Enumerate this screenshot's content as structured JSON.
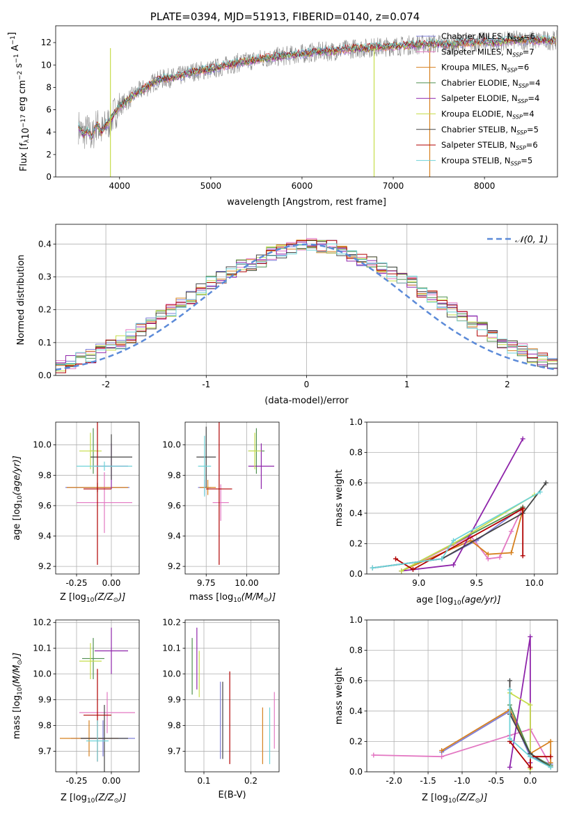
{
  "figure_title": "PLATE=0394, MJD=51913, FIBERID=0140, z=0.074",
  "colors": {
    "Chabrier MILES": "#7f7fd8",
    "Salpeter MILES": "#e377c2",
    "Kroupa MILES": "#d6801e",
    "Chabrier ELODIE": "#4f8f4f",
    "Salpeter ELODIE": "#8e24aa",
    "Kroupa ELODIE": "#c6dd4a",
    "Chabrier STELIB": "#444444",
    "Salpeter STELIB": "#b00000",
    "Kroupa STELIB": "#6fd3d8"
  },
  "chart_data": [
    {
      "id": "spectrum",
      "type": "line",
      "title": "PLATE=0394, MJD=51913, FIBERID=0140, z=0.074",
      "xlabel": "wavelength [Angstrom, rest frame]",
      "ylabel": "Flux [f_λ 10^-17 erg cm^-2 s^-1 A^-1]",
      "xlim": [
        3300,
        8800
      ],
      "ylim": [
        0,
        13.5
      ],
      "xticks": [
        4000,
        5000,
        6000,
        7000,
        8000
      ],
      "yticks": [
        0,
        2,
        4,
        6,
        8,
        10,
        12
      ],
      "grid": false,
      "legend_position": "right",
      "data_line": {
        "name": "data",
        "color": "#888888",
        "x": [
          3550,
          3600,
          3650,
          3700,
          3750,
          3800,
          3850,
          3900,
          3950,
          4000,
          4100,
          4200,
          4300,
          4400,
          4500,
          4600,
          4700,
          4800,
          4900,
          5000,
          5100,
          5200,
          5300,
          5400,
          5500,
          5600,
          5700,
          5800,
          5900,
          6000,
          6100,
          6200,
          6300,
          6400,
          6500,
          6600,
          6700,
          6800,
          6900,
          7000,
          7100,
          7200,
          7300,
          7400,
          7500,
          7600,
          7700,
          7800,
          7900,
          8000,
          8100,
          8200,
          8300,
          8400
        ],
        "y": [
          4.5,
          3.8,
          4.2,
          3.5,
          4.8,
          4.0,
          4.6,
          5.0,
          5.8,
          6.3,
          6.9,
          7.6,
          8.0,
          8.6,
          8.8,
          8.9,
          9.1,
          9.4,
          9.5,
          9.6,
          9.8,
          10.0,
          10.2,
          10.3,
          10.5,
          10.6,
          10.7,
          10.8,
          10.9,
          11.0,
          11.1,
          11.2,
          11.2,
          11.3,
          11.4,
          11.5,
          11.5,
          11.6,
          11.6,
          11.7,
          11.7,
          11.8,
          11.8,
          11.9,
          11.9,
          11.8,
          11.9,
          12.0,
          12.0,
          12.1,
          12.0,
          12.1,
          12.2,
          12.2
        ]
      },
      "series": [
        {
          "name": "Chabrier MILES",
          "nssp": "6"
        },
        {
          "name": "Salpeter MILES",
          "nssp": "7"
        },
        {
          "name": "Kroupa MILES",
          "nssp": "6"
        },
        {
          "name": "Chabrier ELODIE",
          "nssp": "4"
        },
        {
          "name": "Salpeter ELODIE",
          "nssp": "4"
        },
        {
          "name": "Kroupa ELODIE",
          "nssp": "4"
        },
        {
          "name": "Chabrier STELIB",
          "nssp": "5"
        },
        {
          "name": "Salpeter STELIB",
          "nssp": "6"
        },
        {
          "name": "Kroupa STELIB",
          "nssp": "5"
        }
      ]
    },
    {
      "id": "residuals",
      "type": "line",
      "xlabel": "(data-model)/error",
      "ylabel": "Normed distribution",
      "xlim": [
        -2.5,
        2.5
      ],
      "ylim": [
        0,
        0.46
      ],
      "xticks": [
        -2,
        -1,
        0,
        1,
        2
      ],
      "yticks": [
        0.0,
        0.1,
        0.2,
        0.3,
        0.4
      ],
      "grid": true,
      "legend": "𝒩(0, 1)",
      "legend_position": "top-right",
      "bin_edges_start": -2.5,
      "bin_width": 0.1,
      "histogram_mean": [
        0.03,
        0.04,
        0.05,
        0.06,
        0.08,
        0.09,
        0.1,
        0.12,
        0.14,
        0.16,
        0.18,
        0.2,
        0.22,
        0.24,
        0.26,
        0.28,
        0.3,
        0.31,
        0.33,
        0.34,
        0.35,
        0.37,
        0.38,
        0.39,
        0.39,
        0.4,
        0.39,
        0.39,
        0.38,
        0.37,
        0.35,
        0.34,
        0.33,
        0.31,
        0.3,
        0.28,
        0.26,
        0.24,
        0.22,
        0.2,
        0.18,
        0.16,
        0.14,
        0.12,
        0.1,
        0.09,
        0.08,
        0.06,
        0.05,
        0.04
      ]
    },
    {
      "id": "age_vs_Z",
      "type": "scatter",
      "xlabel": "Z [log10(Z/Z⊙)]",
      "ylabel": "age [log10(age/yr)]",
      "xlim": [
        -0.4,
        0.2
      ],
      "ylim": [
        9.15,
        10.15
      ],
      "xticks": [
        -0.25,
        0.0
      ],
      "yticks": [
        9.2,
        9.4,
        9.6,
        9.8,
        10.0
      ],
      "grid": true,
      "points": [
        {
          "s": "Chabrier MILES",
          "x": -0.1,
          "y": 9.72,
          "xerr": 0.23,
          "yerr": 0.03
        },
        {
          "s": "Salpeter MILES",
          "x": -0.05,
          "y": 9.62,
          "xerr": 0.2,
          "yerr": 0.2
        },
        {
          "s": "Kroupa MILES",
          "x": -0.1,
          "y": 9.72,
          "xerr": 0.22,
          "yerr": 0.03
        },
        {
          "s": "Chabrier ELODIE",
          "x": -0.13,
          "y": 9.96,
          "xerr": 0.02,
          "yerr": 0.15
        },
        {
          "s": "Salpeter ELODIE",
          "x": -0.0,
          "y": 9.86,
          "xerr": 0.12,
          "yerr": 0.15
        },
        {
          "s": "Kroupa ELODIE",
          "x": -0.15,
          "y": 9.96,
          "xerr": 0.08,
          "yerr": 0.12
        },
        {
          "s": "Chabrier STELIB",
          "x": 0.0,
          "y": 9.92,
          "xerr": 0.15,
          "yerr": 0.15
        },
        {
          "s": "Salpeter STELIB",
          "x": -0.1,
          "y": 9.71,
          "xerr": 0.1,
          "yerr": 0.5
        },
        {
          "s": "Kroupa STELIB",
          "x": -0.05,
          "y": 9.86,
          "xerr": 0.2,
          "yerr": 0.03
        }
      ]
    },
    {
      "id": "age_vs_mass",
      "type": "scatter",
      "xlabel": "mass [log10(M/M⊙)]",
      "ylabel": "",
      "xlim": [
        9.62,
        10.2
      ],
      "ylim": [
        9.15,
        10.15
      ],
      "xticks": [
        9.75,
        10.0
      ],
      "yticks": [
        9.2,
        9.4,
        9.6,
        9.8,
        10.0
      ],
      "grid": true,
      "points": [
        {
          "s": "Chabrier MILES",
          "x": 9.74,
          "y": 9.72,
          "xerr": 0.04,
          "yerr": 0.05
        },
        {
          "s": "Salpeter MILES",
          "x": 9.84,
          "y": 9.62,
          "xerr": 0.05,
          "yerr": 0.12
        },
        {
          "s": "Kroupa MILES",
          "x": 9.76,
          "y": 9.72,
          "xerr": 0.05,
          "yerr": 0.05
        },
        {
          "s": "Chabrier ELODIE",
          "x": 10.06,
          "y": 9.96,
          "xerr": 0.05,
          "yerr": 0.15
        },
        {
          "s": "Salpeter ELODIE",
          "x": 10.09,
          "y": 9.86,
          "xerr": 0.08,
          "yerr": 0.15
        },
        {
          "s": "Kroupa ELODIE",
          "x": 10.05,
          "y": 9.96,
          "xerr": 0.04,
          "yerr": 0.12
        },
        {
          "s": "Chabrier STELIB",
          "x": 9.75,
          "y": 9.92,
          "xerr": 0.06,
          "yerr": 0.2
        },
        {
          "s": "Salpeter STELIB",
          "x": 9.83,
          "y": 9.71,
          "xerr": 0.08,
          "yerr": 0.5
        },
        {
          "s": "Kroupa STELIB",
          "x": 9.74,
          "y": 9.86,
          "xerr": 0.04,
          "yerr": 0.2
        }
      ]
    },
    {
      "id": "mass_weight_vs_age",
      "type": "line",
      "xlabel": "age [log10(age/yr)]",
      "ylabel": "mass weight",
      "xlim": [
        8.55,
        10.2
      ],
      "ylim": [
        0,
        1.0
      ],
      "xticks": [
        9.0,
        9.5,
        10.0
      ],
      "yticks": [
        0.0,
        0.2,
        0.4,
        0.6,
        0.8,
        1.0
      ],
      "grid": true,
      "series": [
        {
          "name": "Chabrier MILES",
          "x": [
            8.6,
            9.2,
            9.5,
            9.9
          ],
          "y": [
            0.04,
            0.1,
            0.22,
            0.44
          ]
        },
        {
          "name": "Salpeter MILES",
          "x": [
            8.85,
            9.45,
            9.6,
            9.7,
            9.8,
            9.9
          ],
          "y": [
            0.02,
            0.25,
            0.1,
            0.11,
            0.28,
            0.44
          ]
        },
        {
          "name": "Kroupa MILES",
          "x": [
            8.85,
            9.45,
            9.6,
            9.8,
            9.9
          ],
          "y": [
            0.02,
            0.22,
            0.13,
            0.14,
            0.42
          ]
        },
        {
          "name": "Chabrier ELODIE",
          "x": [
            8.85,
            9.3,
            9.9
          ],
          "y": [
            0.02,
            0.2,
            0.44
          ]
        },
        {
          "name": "Salpeter ELODIE",
          "x": [
            8.85,
            9.3,
            9.9
          ],
          "y": [
            0.02,
            0.06,
            0.89
          ]
        },
        {
          "name": "Kroupa ELODIE",
          "x": [
            8.85,
            9.3,
            10.0
          ],
          "y": [
            0.02,
            0.2,
            0.52
          ]
        },
        {
          "name": "Chabrier STELIB",
          "x": [
            8.6,
            9.2,
            9.9,
            10.1
          ],
          "y": [
            0.04,
            0.1,
            0.4,
            0.6
          ]
        },
        {
          "name": "Salpeter STELIB",
          "x": [
            8.8,
            8.95,
            9.9,
            9.9
          ],
          "y": [
            0.1,
            0.03,
            0.43,
            0.12
          ]
        },
        {
          "name": "Kroupa STELIB",
          "x": [
            8.6,
            9.2,
            9.3,
            10.05
          ],
          "y": [
            0.04,
            0.1,
            0.22,
            0.54
          ]
        }
      ]
    },
    {
      "id": "mass_vs_Z",
      "type": "scatter",
      "xlabel": "Z [log10(Z/Z⊙)]",
      "ylabel": "mass [log10(M/M⊙)]",
      "xlim": [
        -0.4,
        0.2
      ],
      "ylim": [
        9.62,
        10.21
      ],
      "xticks": [
        -0.25,
        0.0
      ],
      "yticks": [
        9.7,
        9.8,
        9.9,
        10.0,
        10.1,
        10.2
      ],
      "grid": true,
      "points": [
        {
          "s": "Chabrier MILES",
          "x": -0.06,
          "y": 9.75,
          "xerr": 0.23,
          "yerr": 0.07
        },
        {
          "s": "Salpeter MILES",
          "x": -0.03,
          "y": 9.85,
          "xerr": 0.2,
          "yerr": 0.08
        },
        {
          "s": "Kroupa MILES",
          "x": -0.16,
          "y": 9.75,
          "xerr": 0.21,
          "yerr": 0.07
        },
        {
          "s": "Chabrier ELODIE",
          "x": -0.13,
          "y": 10.06,
          "xerr": 0.08,
          "yerr": 0.08
        },
        {
          "s": "Salpeter ELODIE",
          "x": -0.0,
          "y": 10.09,
          "xerr": 0.12,
          "yerr": 0.09
        },
        {
          "s": "Kroupa ELODIE",
          "x": -0.15,
          "y": 10.05,
          "xerr": 0.08,
          "yerr": 0.07
        },
        {
          "s": "Chabrier STELIB",
          "x": -0.05,
          "y": 9.75,
          "xerr": 0.17,
          "yerr": 0.13
        },
        {
          "s": "Salpeter STELIB",
          "x": -0.1,
          "y": 9.84,
          "xerr": 0.1,
          "yerr": 0.18
        },
        {
          "s": "Kroupa STELIB",
          "x": -0.1,
          "y": 9.74,
          "xerr": 0.08,
          "yerr": 0.08
        }
      ]
    },
    {
      "id": "mass_vs_ebv",
      "type": "scatter",
      "xlabel": "E(B-V)",
      "ylabel": "",
      "xlim": [
        0.06,
        0.26
      ],
      "ylim": [
        9.62,
        10.21
      ],
      "xticks": [
        0.1,
        0.2
      ],
      "yticks": [
        9.7,
        9.8,
        9.9,
        10.0,
        10.1,
        10.2
      ],
      "grid": true,
      "points": [
        {
          "s": "Chabrier MILES",
          "x": 0.135,
          "y": 9.82,
          "xerr": 0,
          "yerr": 0.15
        },
        {
          "s": "Salpeter MILES",
          "x": 0.25,
          "y": 9.82,
          "xerr": 0,
          "yerr": 0.11
        },
        {
          "s": "Kroupa MILES",
          "x": 0.225,
          "y": 9.76,
          "xerr": 0,
          "yerr": 0.11
        },
        {
          "s": "Chabrier ELODIE",
          "x": 0.075,
          "y": 10.03,
          "xerr": 0,
          "yerr": 0.11
        },
        {
          "s": "Salpeter ELODIE",
          "x": 0.085,
          "y": 10.06,
          "xerr": 0,
          "yerr": 0.12
        },
        {
          "s": "Kroupa ELODIE",
          "x": 0.09,
          "y": 10.0,
          "xerr": 0,
          "yerr": 0.09
        },
        {
          "s": "Chabrier STELIB",
          "x": 0.14,
          "y": 9.82,
          "xerr": 0,
          "yerr": 0.15
        },
        {
          "s": "Salpeter STELIB",
          "x": 0.155,
          "y": 9.83,
          "xerr": 0,
          "yerr": 0.18
        },
        {
          "s": "Kroupa STELIB",
          "x": 0.24,
          "y": 9.76,
          "xerr": 0,
          "yerr": 0.11
        }
      ]
    },
    {
      "id": "mass_weight_vs_Z",
      "type": "line",
      "xlabel": "Z [log10(Z/Z⊙)]",
      "ylabel": "mass weight",
      "xlim": [
        -2.4,
        0.4
      ],
      "ylim": [
        0,
        1.0
      ],
      "xticks": [
        -2.0,
        -1.5,
        -1.0,
        -0.5,
        0.0
      ],
      "yticks": [
        0.0,
        0.2,
        0.4,
        0.6,
        0.8,
        1.0
      ],
      "grid": true,
      "series": [
        {
          "name": "Chabrier MILES",
          "x": [
            -1.3,
            -0.3,
            0.0,
            0.3
          ],
          "y": [
            0.13,
            0.4,
            0.1,
            0.05
          ]
        },
        {
          "name": "Salpeter MILES",
          "x": [
            -2.3,
            -1.3,
            -0.3,
            0.0,
            0.3
          ],
          "y": [
            0.11,
            0.1,
            0.24,
            0.28,
            0.04
          ]
        },
        {
          "name": "Kroupa MILES",
          "x": [
            -1.3,
            -0.3,
            0.0,
            0.3,
            0.3
          ],
          "y": [
            0.14,
            0.41,
            0.12,
            0.2,
            0.06
          ]
        },
        {
          "name": "Chabrier ELODIE",
          "x": [
            -0.3,
            0.0,
            0.3
          ],
          "y": [
            0.44,
            0.12,
            0.04
          ]
        },
        {
          "name": "Salpeter ELODIE",
          "x": [
            -0.3,
            0.0,
            0.0
          ],
          "y": [
            0.03,
            0.89,
            0.06
          ]
        },
        {
          "name": "Kroupa ELODIE",
          "x": [
            -0.3,
            0.0,
            0.0
          ],
          "y": [
            0.52,
            0.44,
            0.02
          ]
        },
        {
          "name": "Chabrier STELIB",
          "x": [
            -0.3,
            -0.3,
            0.0,
            0.3
          ],
          "y": [
            0.6,
            0.38,
            0.12,
            0.03
          ]
        },
        {
          "name": "Salpeter STELIB",
          "x": [
            -0.3,
            0.0,
            0.0,
            0.3
          ],
          "y": [
            0.2,
            0.03,
            0.1,
            0.1
          ]
        },
        {
          "name": "Kroupa STELIB",
          "x": [
            -0.3,
            -0.3,
            0.0,
            0.3
          ],
          "y": [
            0.54,
            0.22,
            0.1,
            0.03
          ]
        }
      ]
    }
  ]
}
